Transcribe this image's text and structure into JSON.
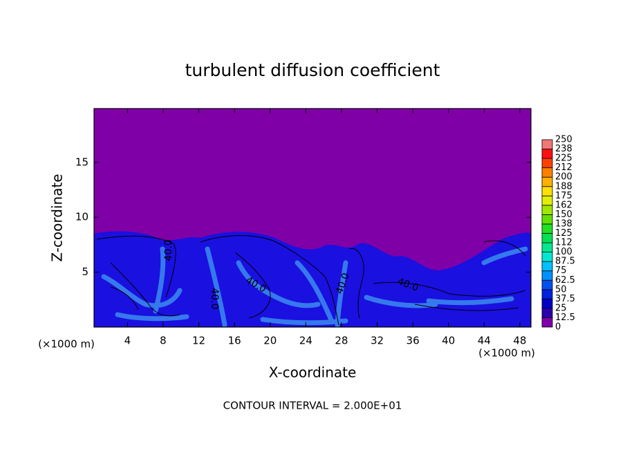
{
  "chart_data": {
    "type": "contour",
    "title": "turbulent diffusion coefficient",
    "x_label": "X-coordinate",
    "y_label": "Z-coordinate",
    "x_unit_left": "(×1000 m)",
    "x_unit_right": "(×1000 m)",
    "footer": "CONTOUR INTERVAL = 2.000E+01",
    "xlim": [
      0.25,
      49.25
    ],
    "xticks": [
      4,
      8,
      12,
      16,
      20,
      24,
      28,
      32,
      36,
      40,
      44,
      48
    ],
    "ylim": [
      0,
      19.9
    ],
    "yticks": [
      5,
      10,
      15
    ],
    "levels": [
      0,
      12.5,
      25,
      37.5,
      50,
      62.5,
      75,
      87.5,
      100,
      112,
      125,
      138,
      150,
      162,
      175,
      188,
      200,
      212,
      225,
      238,
      250
    ],
    "colors": [
      "#8000a8",
      "#2a00b0",
      "#0000c8",
      "#0020e0",
      "#0050f0",
      "#0090ff",
      "#00c0ff",
      "#00e8d0",
      "#00e890",
      "#00e050",
      "#20e020",
      "#60e000",
      "#a0e800",
      "#e0f000",
      "#ffe000",
      "#ffb000",
      "#ff8000",
      "#ff4000",
      "#ff1010",
      "#f07878"
    ],
    "contour_labels": [
      {
        "value": 40,
        "label": "40.0"
      },
      {
        "value": 40,
        "label": "40.0"
      },
      {
        "value": 40,
        "label": "40.0"
      },
      {
        "value": 40,
        "label": "40.0"
      },
      {
        "value": 40,
        "label": "40.0"
      }
    ]
  }
}
